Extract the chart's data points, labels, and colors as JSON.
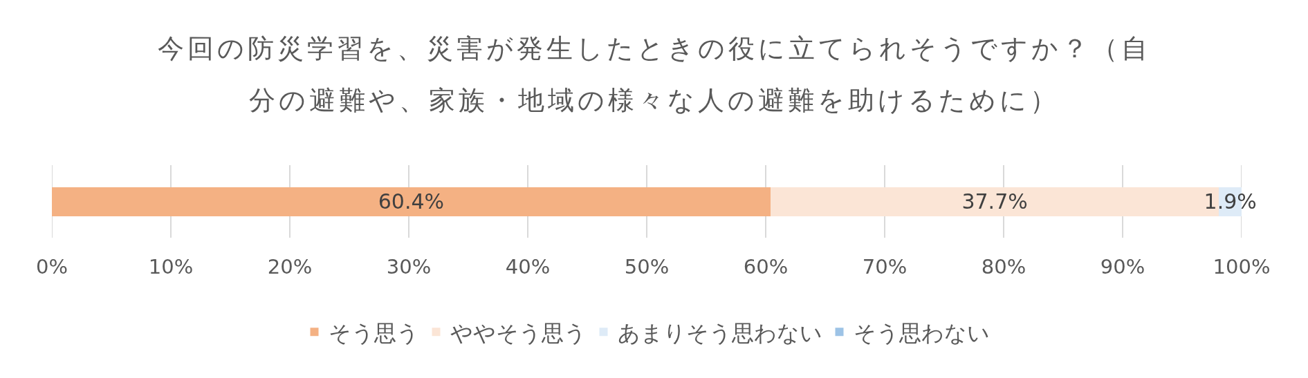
{
  "chart_data": {
    "type": "bar",
    "orientation": "horizontal",
    "stacked": true,
    "title": "今回の防災学習を、災害が発生したときの役に立てられそうですか？（自分の避難や、家族・地域の様々な人の避難を助けるために）",
    "categories": [
      null
    ],
    "series": [
      {
        "name": "そう思う",
        "color": "#f4b183",
        "values": [
          60.4
        ],
        "value_labels": [
          "60.4%"
        ]
      },
      {
        "name": "ややそう思う",
        "color": "#fbe5d6",
        "values": [
          37.7
        ],
        "value_labels": [
          "37.7%"
        ]
      },
      {
        "name": "あまりそう思わない",
        "color": "#deebf7",
        "values": [
          1.9
        ],
        "value_labels": [
          "1.9%"
        ]
      },
      {
        "name": "そう思わない",
        "color": "#9dc3e6",
        "values": [
          0
        ],
        "value_labels": [
          null
        ]
      }
    ],
    "xlim": [
      0,
      100
    ],
    "xticks": [
      {
        "value": 0,
        "label": "0%"
      },
      {
        "value": 10,
        "label": "10%"
      },
      {
        "value": 20,
        "label": "20%"
      },
      {
        "value": 30,
        "label": "30%"
      },
      {
        "value": 40,
        "label": "40%"
      },
      {
        "value": 50,
        "label": "50%"
      },
      {
        "value": 60,
        "label": "60%"
      },
      {
        "value": 70,
        "label": "70%"
      },
      {
        "value": 80,
        "label": "80%"
      },
      {
        "value": 90,
        "label": "90%"
      },
      {
        "value": 100,
        "label": "100%"
      }
    ],
    "grid": "x",
    "legend": "bottom",
    "tick_labels": "x"
  }
}
